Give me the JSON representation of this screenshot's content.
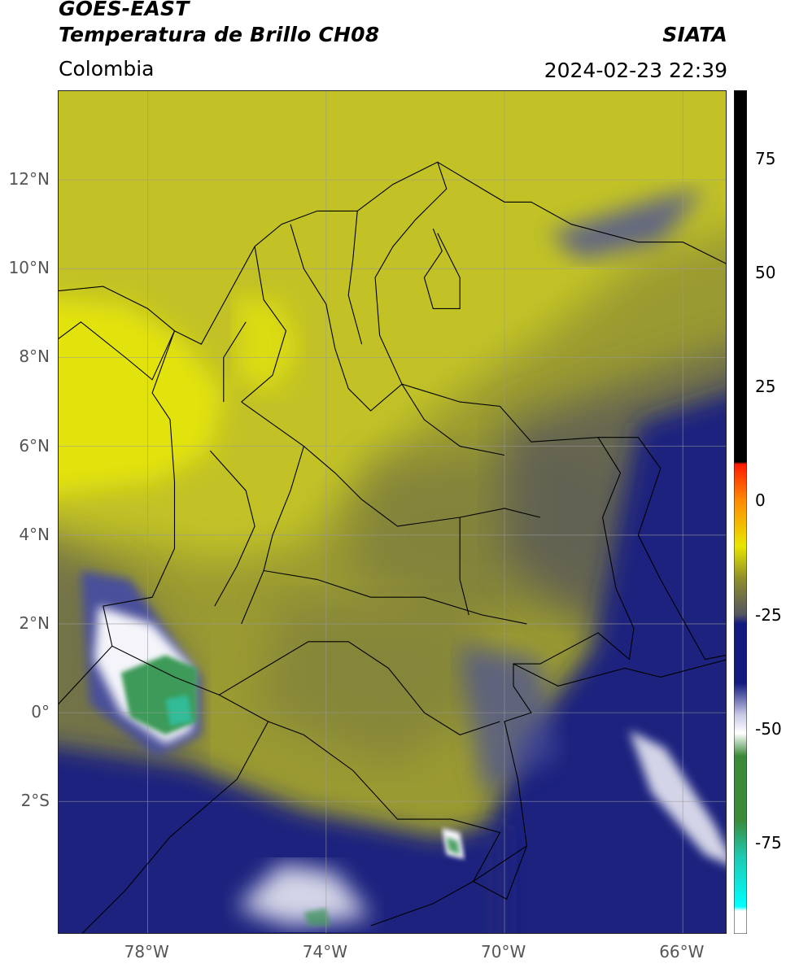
{
  "header": {
    "satellite": "GOES-EAST",
    "product": "Temperatura de Brillo CH08",
    "brand": "SIATA",
    "region": "Colombia",
    "timestamp": "2024-02-23 22:39"
  },
  "map": {
    "lon_range": [
      -80,
      -65
    ],
    "lat_range": [
      -5,
      14
    ],
    "lat_ticks": [
      {
        "value": 12,
        "label": "12°N"
      },
      {
        "value": 10,
        "label": "10°N"
      },
      {
        "value": 8,
        "label": "8°N"
      },
      {
        "value": 6,
        "label": "6°N"
      },
      {
        "value": 4,
        "label": "4°N"
      },
      {
        "value": 2,
        "label": "2°N"
      },
      {
        "value": 0,
        "label": "0°"
      },
      {
        "value": -2,
        "label": "2°S"
      }
    ],
    "lon_ticks": [
      {
        "value": -78,
        "label": "78°W"
      },
      {
        "value": -74,
        "label": "74°W"
      },
      {
        "value": -70,
        "label": "70°W"
      },
      {
        "value": -66,
        "label": "66°W"
      }
    ],
    "grid": true
  },
  "colorbar": {
    "range": [
      -95,
      90
    ],
    "ticks": [
      {
        "value": 75,
        "label": "75"
      },
      {
        "value": 50,
        "label": "50"
      },
      {
        "value": 25,
        "label": "25"
      },
      {
        "value": 0,
        "label": "0"
      },
      {
        "value": -25,
        "label": "-25"
      },
      {
        "value": -50,
        "label": "-50"
      },
      {
        "value": -75,
        "label": "-75"
      }
    ],
    "colors": {
      "top_black": "#000000",
      "red": "#ff1a00",
      "orange": "#ff8c00",
      "yellow": "#e8e600",
      "olive": "#8f8f2a",
      "gray": "#555560",
      "navy": "#121a80",
      "lavender": "#c9c9e6",
      "white": "#ffffff",
      "green": "#3a8a3a",
      "teal": "#20c8b0",
      "cyan": "#00ffff"
    }
  },
  "image_colors": {
    "yellow_bright": "#e2e20e",
    "yellow": "#c2c228",
    "olive": "#9a9a32",
    "olive_dark": "#7a7a40",
    "gray": "#5a5a58",
    "navy": "#1a237e",
    "navy_light": "#4a4f9a",
    "white": "#f4f4fa",
    "green": "#3e9a58",
    "teal": "#30c0a0"
  }
}
